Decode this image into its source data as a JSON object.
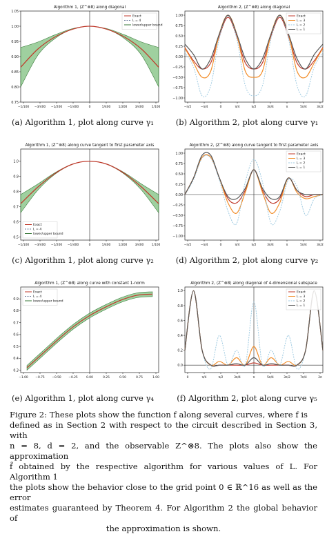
{
  "colors": {
    "exact": "#1f1f1f",
    "approx_L4": "#6a7a9a",
    "bound_fill": "#7fc07f",
    "bound_line": "#3a7a3a",
    "red": "#c0392b",
    "L3": "#f28e2b",
    "L2": "#9ecae1",
    "L1": "#555555"
  },
  "panels": [
    {
      "id": "a",
      "caption": "(a) Algorithm 1, plot along curve γ₁",
      "chart_data": {
        "type": "line",
        "title": "Algorithm 1, ⟨Z^⊗8⟩ along diagonal",
        "xlim": [
          -1.0,
          1.0
        ],
        "ylim": [
          0.75,
          1.05
        ],
        "yticks": [
          "0.75",
          "0.80",
          "0.85",
          "0.90",
          "0.95",
          "1.00",
          "1.05"
        ],
        "xticks": [
          "−1/100",
          "−3/400",
          "−1/200",
          "−1/400",
          "0",
          "1/400",
          "1/200",
          "3/400",
          "1/100"
        ],
        "legend": [
          "Exact",
          "L = 4",
          "lower/upper bound"
        ],
        "legend_position": "top-right",
        "x": [
          -1.0,
          -0.75,
          -0.5,
          -0.25,
          0.0,
          0.25,
          0.5,
          0.75,
          1.0
        ],
        "series": [
          {
            "name": "Exact",
            "values": [
              0.865,
              0.925,
              0.965,
              0.99,
              1.0,
              0.99,
              0.965,
              0.925,
              0.865
            ]
          },
          {
            "name": "lower",
            "values": [
              0.8,
              0.905,
              0.96,
              0.99,
              1.0,
              0.99,
              0.96,
              0.905,
              0.8
            ]
          },
          {
            "name": "upper",
            "values": [
              0.93,
              0.948,
              0.972,
              0.992,
              1.0,
              0.992,
              0.972,
              0.948,
              0.93
            ]
          }
        ]
      }
    },
    {
      "id": "b",
      "caption": "(b) Algorithm 2, plot along curve γ₁",
      "chart_data": {
        "type": "line",
        "title": "Algorithm 2, ⟨Z^⊗8⟩ along diagonal",
        "xlim": [
          -1.0,
          1.0
        ],
        "ylim": [
          -1.1,
          1.1
        ],
        "yticks": [
          "−1.00",
          "−0.75",
          "−0.50",
          "−0.25",
          "0.00",
          "0.25",
          "0.50",
          "0.75",
          "1.00"
        ],
        "xticks": [
          "−π/2",
          "−π/4",
          "0",
          "π/4",
          "π/2",
          "3π/4",
          "π",
          "5π/4",
          "3π/2"
        ],
        "legend": [
          "Exact",
          "L = 3",
          "L = 2",
          "L = 1"
        ],
        "legend_position": "top-right",
        "x": [
          -1.0,
          -0.875,
          -0.75,
          -0.625,
          -0.5,
          -0.375,
          -0.25,
          -0.125,
          0.0,
          0.125,
          0.25,
          0.375,
          0.5,
          0.625,
          0.75,
          0.875,
          1.0
        ],
        "series": [
          {
            "name": "Exact",
            "values": [
              0.22,
              -0.1,
              -0.3,
              -0.15,
              0.5,
              0.95,
              0.5,
              -0.15,
              -0.3,
              -0.15,
              0.5,
              0.95,
              0.5,
              -0.15,
              -0.3,
              -0.1,
              0.22
            ]
          },
          {
            "name": "L = 3",
            "values": [
              0.2,
              -0.15,
              -0.5,
              -0.35,
              0.55,
              1.0,
              0.55,
              -0.35,
              -0.5,
              -0.35,
              0.55,
              1.0,
              0.55,
              -0.35,
              -0.5,
              -0.15,
              0.2
            ]
          },
          {
            "name": "L = 2",
            "values": [
              0.1,
              -0.25,
              -0.95,
              -0.7,
              0.45,
              0.98,
              0.45,
              -0.7,
              -0.95,
              -0.7,
              0.45,
              0.98,
              0.45,
              -0.7,
              -0.95,
              -0.25,
              0.1
            ]
          },
          {
            "name": "L = 1",
            "values": [
              0.3,
              0.05,
              -0.3,
              -0.05,
              0.55,
              1.0,
              0.55,
              -0.05,
              -0.3,
              -0.05,
              0.55,
              1.0,
              0.55,
              -0.05,
              -0.3,
              0.05,
              0.3
            ]
          }
        ]
      }
    },
    {
      "id": "c",
      "caption": "(c) Algorithm 1, plot along curve γ₂",
      "chart_data": {
        "type": "line",
        "title": "Algorithm 1, ⟨Z^⊗8⟩ along curve tangent to first parameter axis",
        "xlim": [
          -1.0,
          1.0
        ],
        "ylim": [
          0.48,
          1.08
        ],
        "yticks": [
          "0.5",
          "0.6",
          "0.7",
          "0.8",
          "0.9",
          "1.0"
        ],
        "xticks": [
          "−1/100",
          "−3/400",
          "−1/200",
          "−1/400",
          "0",
          "1/400",
          "1/200",
          "3/400",
          "1/100"
        ],
        "legend": [
          "Exact",
          "L = 4",
          "lower/upper bound"
        ],
        "legend_position": "bottom-left",
        "x": [
          -1.0,
          -0.75,
          -0.5,
          -0.25,
          0.0,
          0.25,
          0.5,
          0.75,
          1.0
        ],
        "series": [
          {
            "name": "Exact",
            "values": [
              0.72,
              0.83,
              0.92,
              0.98,
              1.0,
              0.98,
              0.92,
              0.83,
              0.72
            ]
          },
          {
            "name": "lower",
            "values": [
              0.66,
              0.81,
              0.915,
              0.979,
              1.0,
              0.979,
              0.915,
              0.81,
              0.66
            ]
          },
          {
            "name": "upper",
            "values": [
              0.78,
              0.85,
              0.925,
              0.981,
              1.0,
              0.981,
              0.925,
              0.85,
              0.78
            ]
          }
        ]
      }
    },
    {
      "id": "d",
      "caption": "(d) Algorithm 2, plot along curve γ₂",
      "chart_data": {
        "type": "line",
        "title": "Algorithm 2, ⟨Z^⊗8⟩ along curve tangent to first parameter axis",
        "xlim": [
          -1.0,
          1.0
        ],
        "ylim": [
          -1.1,
          1.1
        ],
        "yticks": [
          "−1.00",
          "−0.75",
          "−0.50",
          "−0.25",
          "0.00",
          "0.25",
          "0.50",
          "0.75",
          "1.00"
        ],
        "xticks": [
          "−π/2",
          "−π/4",
          "0",
          "π/4",
          "π/2",
          "3π/4",
          "π",
          "5π/4",
          "3π/2"
        ],
        "legend": [
          "Exact",
          "L = 3",
          "L = 2",
          "L = 1"
        ],
        "legend_position": "top-right",
        "x": [
          -1.0,
          -0.875,
          -0.75,
          -0.625,
          -0.5,
          -0.375,
          -0.25,
          -0.125,
          0.0,
          0.125,
          0.25,
          0.375,
          0.5,
          0.625,
          0.75,
          0.875,
          1.0
        ],
        "series": [
          {
            "name": "Exact",
            "values": [
              0.0,
              0.4,
              0.9,
              0.9,
              0.4,
              -0.1,
              -0.2,
              0.1,
              0.6,
              0.1,
              -0.2,
              -0.1,
              0.4,
              0.1,
              -0.05,
              0.0,
              0.0
            ]
          },
          {
            "name": "L = 3",
            "values": [
              0.0,
              0.4,
              0.9,
              0.9,
              0.4,
              -0.2,
              -0.45,
              0.05,
              0.6,
              0.05,
              -0.45,
              -0.2,
              0.4,
              0.05,
              -0.1,
              -0.05,
              0.0
            ]
          },
          {
            "name": "L = 2",
            "values": [
              0.0,
              0.35,
              0.88,
              0.88,
              0.35,
              -0.4,
              -0.7,
              0.3,
              0.85,
              0.3,
              -0.7,
              -0.4,
              0.35,
              0.2,
              -0.5,
              -0.1,
              0.0
            ]
          },
          {
            "name": "L = 1",
            "values": [
              0.0,
              0.4,
              0.95,
              0.95,
              0.4,
              -0.05,
              -0.1,
              0.15,
              0.6,
              0.15,
              -0.1,
              -0.05,
              0.4,
              0.1,
              0.0,
              0.0,
              0.0
            ]
          }
        ]
      }
    },
    {
      "id": "e",
      "caption": "(e) Algorithm 1, plot along curve γ₄",
      "chart_data": {
        "type": "line",
        "title": "Algorithm 1, ⟨Z^⊗8⟩ along curve with constant 1-norm",
        "xlim": [
          -1.1,
          1.1
        ],
        "ylim": [
          0.28,
          1.0
        ],
        "yticks": [
          "0.3",
          "0.4",
          "0.5",
          "0.6",
          "0.7",
          "0.8",
          "0.9"
        ],
        "xticks": [
          "−1.00",
          "−0.75",
          "−0.50",
          "−0.25",
          "0.00",
          "0.25",
          "0.50",
          "0.75",
          "1.00"
        ],
        "legend": [
          "Exact",
          "L = 4",
          "lower/upper bound"
        ],
        "legend_position": "top-left",
        "x": [
          -1.0,
          -0.75,
          -0.5,
          -0.25,
          0.0,
          0.25,
          0.5,
          0.75,
          1.0
        ],
        "series": [
          {
            "name": "Exact",
            "values": [
              0.32,
              0.44,
              0.56,
              0.67,
              0.76,
              0.83,
              0.89,
              0.93,
              0.94
            ]
          },
          {
            "name": "lower",
            "values": [
              0.3,
              0.42,
              0.54,
              0.65,
              0.74,
              0.81,
              0.87,
              0.91,
              0.92
            ]
          },
          {
            "name": "upper",
            "values": [
              0.34,
              0.46,
              0.58,
              0.69,
              0.78,
              0.85,
              0.91,
              0.95,
              0.96
            ]
          }
        ]
      }
    },
    {
      "id": "f",
      "caption": "(f) Algorithm 2, plot along curve γ₅",
      "chart_data": {
        "type": "line",
        "title": "Algorithm 2, ⟨Z^⊗8⟩ along diagonal of 4-dimensional subspace",
        "xlim": [
          -1.0,
          1.0
        ],
        "ylim": [
          -0.1,
          1.05
        ],
        "yticks": [
          "0.0",
          "0.2",
          "0.4",
          "0.6",
          "0.8",
          "1.0"
        ],
        "xticks": [
          "0",
          "π/4",
          "π/2",
          "3π/4",
          "π",
          "5π/4",
          "3π/2",
          "7π/4",
          "2π"
        ],
        "legend": [
          "Exact",
          "L = 3",
          "L = 2",
          "L = 1"
        ],
        "legend_position": "top-right",
        "x": [
          -1.0,
          -0.875,
          -0.75,
          -0.625,
          -0.5,
          -0.375,
          -0.25,
          -0.125,
          0.0,
          0.125,
          0.25,
          0.375,
          0.5,
          0.625,
          0.75,
          0.875,
          1.0
        ],
        "series": [
          {
            "name": "Exact",
            "values": [
              0.2,
              1.0,
              0.2,
              0.0,
              0.0,
              0.0,
              0.0,
              0.0,
              0.03,
              0.0,
              0.0,
              0.0,
              0.0,
              0.0,
              0.2,
              1.0,
              0.2
            ]
          },
          {
            "name": "L = 3",
            "values": [
              0.2,
              1.0,
              0.2,
              0.0,
              0.05,
              0.0,
              0.1,
              0.0,
              0.25,
              0.0,
              0.1,
              0.0,
              0.05,
              0.0,
              0.2,
              1.0,
              0.2
            ]
          },
          {
            "name": "L = 2",
            "values": [
              0.2,
              1.0,
              0.2,
              -0.05,
              0.4,
              0.0,
              0.2,
              0.0,
              0.85,
              0.0,
              0.2,
              0.0,
              0.4,
              -0.05,
              0.2,
              1.0,
              0.2
            ]
          },
          {
            "name": "L = 1",
            "values": [
              0.2,
              1.0,
              0.2,
              0.0,
              0.0,
              0.0,
              0.02,
              0.0,
              0.1,
              0.0,
              0.02,
              0.0,
              0.0,
              0.0,
              0.2,
              1.0,
              0.2
            ]
          }
        ]
      }
    }
  ],
  "figure_caption": {
    "lines": [
      "Figure 2: These plots show the function f along several curves, where f is",
      "defined as in Section 2 with respect to the circuit described in Section 3, with",
      "n = 8, d = 2, and the observable Z^⊗8. The plots also show the approximation",
      "f̃ obtained by the respective algorithm for various values of L. For Algorithm 1",
      "the plots show the behavior close to the grid point 0 ∈ ℝ^16 as well as the error",
      "estimates guaranteed by Theorem 4. For Algorithm 2 the global behavior of",
      "the approximation is shown."
    ]
  }
}
